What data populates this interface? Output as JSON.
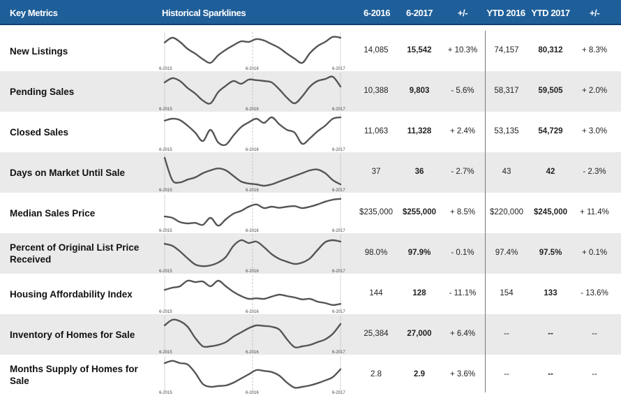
{
  "header": {
    "metrics": "Key Metrics",
    "sparklines": "Historical Sparklines",
    "c1": "6-2016",
    "c2": "6-2017",
    "c3": "+/-",
    "c4": "YTD 2016",
    "c5": "YTD 2017",
    "c6": "+/-"
  },
  "colors": {
    "header_bg": "#1f5f99",
    "row_shade": "#eaeaea",
    "line": "#555555"
  },
  "chart_data": {
    "type": "line",
    "x_tick_labels": [
      "6-2015",
      "6-2016",
      "6-2017"
    ],
    "rows": [
      {
        "label": "New Listings",
        "v2016": "14,085",
        "v2017": "15,542",
        "chg": "+ 10.3%",
        "ytd2016": "74,157",
        "ytd2017": "80,312",
        "ytdchg": "+ 8.3%",
        "series": [
          0.78,
          0.95,
          0.8,
          0.55,
          0.38,
          0.18,
          0.05,
          0.32,
          0.52,
          0.68,
          0.82,
          0.8,
          0.9,
          0.85,
          0.72,
          0.58,
          0.38,
          0.2,
          0.05,
          0.4,
          0.65,
          0.8,
          0.98,
          0.95
        ]
      },
      {
        "label": "Pending Sales",
        "v2016": "10,388",
        "v2017": "9,803",
        "chg": "- 5.6%",
        "ytd2016": "58,317",
        "ytd2017": "59,505",
        "ytdchg": "+ 2.0%",
        "series": [
          0.8,
          0.95,
          0.85,
          0.6,
          0.4,
          0.15,
          0.05,
          0.45,
          0.68,
          0.85,
          0.75,
          0.9,
          0.88,
          0.85,
          0.8,
          0.55,
          0.25,
          0.05,
          0.3,
          0.65,
          0.85,
          0.92,
          1.0,
          0.65
        ]
      },
      {
        "label": "Closed Sales",
        "v2016": "11,063",
        "v2017": "11,328",
        "chg": "+ 2.4%",
        "ytd2016": "53,135",
        "ytd2017": "54,729",
        "ytdchg": "+ 3.0%",
        "series": [
          0.88,
          0.95,
          0.9,
          0.7,
          0.45,
          0.15,
          0.55,
          0.1,
          0.02,
          0.35,
          0.65,
          0.82,
          0.95,
          0.8,
          1.0,
          0.75,
          0.55,
          0.45,
          0.05,
          0.25,
          0.5,
          0.7,
          0.95,
          1.0
        ]
      },
      {
        "label": "Days on Market Until Sale",
        "v2016": "37",
        "v2017": "36",
        "chg": "- 2.7%",
        "ytd2016": "43",
        "ytd2017": "42",
        "ytdchg": "- 2.3%",
        "series": [
          1.0,
          0.2,
          0.12,
          0.22,
          0.3,
          0.45,
          0.55,
          0.62,
          0.55,
          0.35,
          0.15,
          0.08,
          0.05,
          0.0,
          0.05,
          0.15,
          0.25,
          0.35,
          0.45,
          0.55,
          0.58,
          0.45,
          0.2,
          0.05
        ]
      },
      {
        "label": "Median Sales Price",
        "v2016": "$235,000",
        "v2017": "$255,000",
        "chg": "+ 8.5%",
        "ytd2016": "$220,000",
        "ytd2017": "$245,000",
        "ytdchg": "+ 11.4%",
        "series": [
          0.35,
          0.3,
          0.15,
          0.1,
          0.12,
          0.05,
          0.3,
          0.02,
          0.25,
          0.45,
          0.55,
          0.7,
          0.78,
          0.65,
          0.7,
          0.66,
          0.7,
          0.72,
          0.65,
          0.7,
          0.78,
          0.88,
          0.95,
          0.98
        ]
      },
      {
        "label": "Percent of Original List Price Received",
        "v2016": "98.0%",
        "v2017": "97.9%",
        "chg": "- 0.1%",
        "ytd2016": "97.4%",
        "ytd2017": "97.5%",
        "ytdchg": "+ 0.1%",
        "series": [
          0.82,
          0.75,
          0.55,
          0.3,
          0.08,
          0.02,
          0.05,
          0.15,
          0.35,
          0.75,
          0.95,
          0.85,
          0.9,
          0.7,
          0.45,
          0.28,
          0.18,
          0.1,
          0.15,
          0.3,
          0.6,
          0.88,
          0.95,
          0.9
        ]
      },
      {
        "label": "Housing Affordability Index",
        "v2016": "144",
        "v2017": "128",
        "chg": "- 11.1%",
        "ytd2016": "154",
        "ytd2017": "133",
        "ytdchg": "- 13.6%",
        "series": [
          0.62,
          0.7,
          0.75,
          0.95,
          0.9,
          0.92,
          0.75,
          0.95,
          0.75,
          0.55,
          0.4,
          0.3,
          0.32,
          0.3,
          0.38,
          0.45,
          0.4,
          0.35,
          0.28,
          0.3,
          0.2,
          0.15,
          0.08,
          0.12
        ]
      },
      {
        "label": "Inventory of Homes for Sale",
        "v2016": "25,384",
        "v2017": "27,000",
        "chg": "+ 6.4%",
        "ytd2016": "--",
        "ytd2017": "--",
        "ytdchg": "--",
        "series": [
          0.8,
          1.0,
          0.95,
          0.75,
          0.35,
          0.05,
          0.05,
          0.1,
          0.2,
          0.4,
          0.55,
          0.7,
          0.8,
          0.78,
          0.75,
          0.65,
          0.3,
          0.02,
          0.05,
          0.1,
          0.2,
          0.3,
          0.5,
          0.85
        ]
      },
      {
        "label": "Months Supply of Homes for Sale",
        "v2016": "2.8",
        "v2017": "2.9",
        "chg": "+ 3.6%",
        "ytd2016": "--",
        "ytd2017": "--",
        "ytdchg": "--",
        "series": [
          0.9,
          0.98,
          0.9,
          0.85,
          0.55,
          0.15,
          0.05,
          0.08,
          0.1,
          0.2,
          0.35,
          0.5,
          0.65,
          0.62,
          0.58,
          0.45,
          0.2,
          0.02,
          0.05,
          0.1,
          0.18,
          0.28,
          0.4,
          0.68
        ]
      }
    ]
  }
}
